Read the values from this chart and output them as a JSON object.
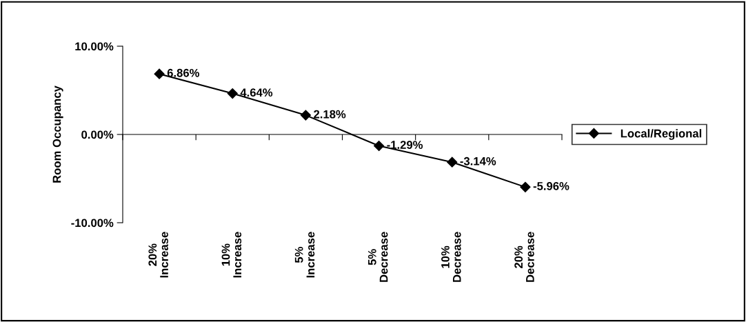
{
  "chart_data": {
    "type": "line",
    "ylabel": "Room Occupancy",
    "categories": [
      "20%\nIncrease",
      "10%\nIncrease",
      "5%\nIncrease",
      "5%\nDecrease",
      "10%\nDecrease",
      "20%\nDecrease"
    ],
    "series": [
      {
        "name": "Local/Regional",
        "color": "#000000",
        "values": [
          6.86,
          4.64,
          2.18,
          -1.29,
          -3.14,
          -5.96
        ],
        "value_labels": [
          "6.86%",
          "4.64%",
          "2.18%",
          "-1.29%",
          "-3.14%",
          "-5.96%"
        ]
      }
    ],
    "ylim": [
      -10,
      10
    ],
    "yticks": [
      {
        "value": -10,
        "label": "-10.00%"
      },
      {
        "value": 0,
        "label": "0.00%"
      },
      {
        "value": 10,
        "label": "10.00%"
      }
    ],
    "legend": "right",
    "marker": "diamond",
    "line_style": "solid"
  }
}
